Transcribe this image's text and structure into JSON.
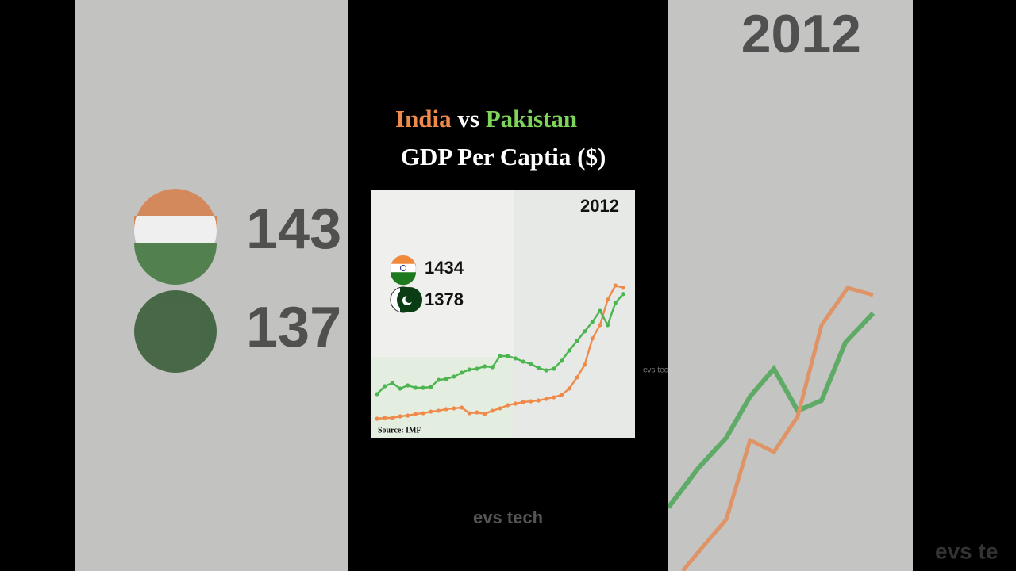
{
  "title": {
    "india": "India",
    "vs": "vs",
    "pakistan": "Pakistan",
    "subtitle": "GDP Per Captia ($)"
  },
  "chart_data": {
    "type": "line",
    "year": "2012",
    "source": "Source: IMF",
    "series": [
      {
        "name": "India",
        "color": "#f08a4b",
        "values": [
          270,
          277,
          277,
          291,
          298,
          312,
          319,
          333,
          341,
          355,
          362,
          369,
          319,
          326,
          312,
          341,
          362,
          390,
          404,
          418,
          425,
          432,
          446,
          460,
          482,
          538,
          637,
          749,
          982,
          1102,
          1328,
          1454,
          1434
        ]
      },
      {
        "name": "Pakistan",
        "color": "#4cb550",
        "values": [
          489,
          559,
          587,
          538,
          566,
          545,
          545,
          552,
          615,
          623,
          644,
          679,
          707,
          714,
          735,
          728,
          827,
          827,
          806,
          778,
          756,
          721,
          700,
          714,
          785,
          876,
          961,
          1046,
          1130,
          1229,
          1102,
          1299,
          1378
        ]
      }
    ]
  },
  "watermark": "evs tech",
  "side_watermark": "evs tec",
  "background": {
    "year": "2012",
    "india": "143",
    "pakistan": "137",
    "watermark": "evs te"
  }
}
